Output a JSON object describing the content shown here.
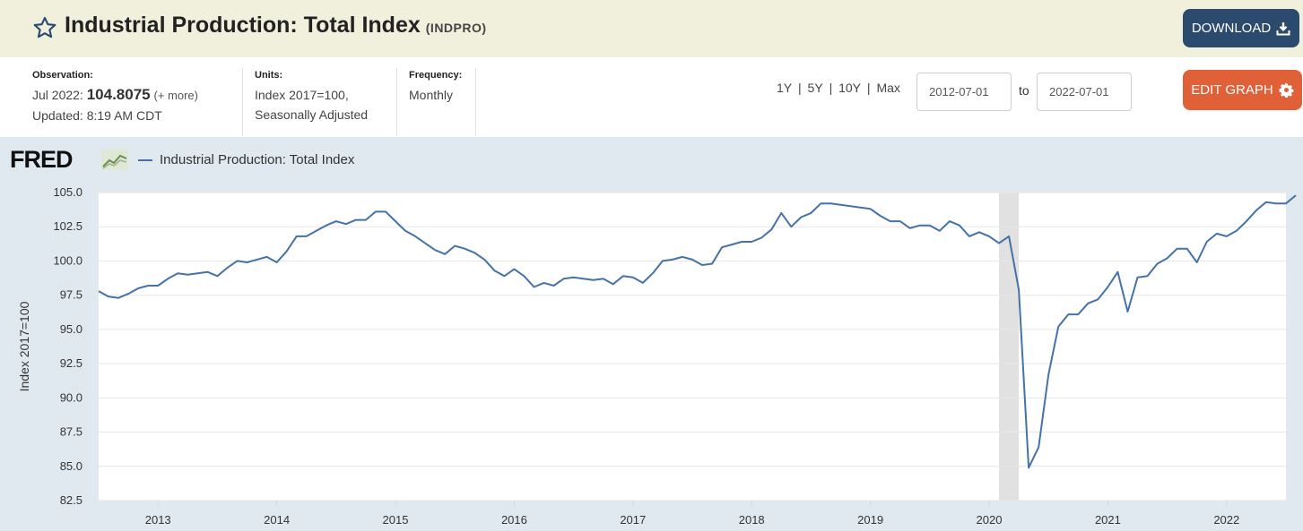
{
  "header": {
    "title": "Industrial Production: Total Index",
    "series_id": "(INDPRO)",
    "download_label": "DOWNLOAD"
  },
  "meta": {
    "observation_label": "Observation:",
    "observation_period": "Jul 2022:",
    "observation_value": "104.8075",
    "observation_more": "(+ more)",
    "updated": "Updated: 8:19 AM CDT",
    "units_label": "Units:",
    "units_line1": "Index 2017=100,",
    "units_line2": "Seasonally Adjusted",
    "frequency_label": "Frequency:",
    "frequency_value": "Monthly"
  },
  "controls": {
    "ranges": [
      "1Y",
      "5Y",
      "10Y",
      "Max"
    ],
    "range_separator": "|",
    "start_date": "2012-07-01",
    "to_label": "to",
    "end_date": "2022-07-01",
    "edit_label": "EDIT GRAPH"
  },
  "brand": {
    "logo_text": "FRED"
  },
  "colors": {
    "series": "#4572a7",
    "recession": "#e1e1e1",
    "header_bg": "#f0f0dc",
    "download": "#2c4a6e",
    "edit": "#e06037"
  },
  "chart_data": {
    "type": "line",
    "title": "",
    "xlabel": "",
    "ylabel": "Index 2017=100",
    "ylim": [
      82.5,
      105.0
    ],
    "xlim": [
      "2012-07-01",
      "2022-07-01"
    ],
    "y_ticks": [
      "105.0",
      "102.5",
      "100.0",
      "97.5",
      "95.0",
      "92.5",
      "90.0",
      "87.5",
      "85.0",
      "82.5"
    ],
    "x_ticks": [
      "2013",
      "2014",
      "2015",
      "2016",
      "2017",
      "2018",
      "2019",
      "2020",
      "2021",
      "2022"
    ],
    "grid": true,
    "legend_position": "top-left",
    "recession_shading": [
      [
        "2020-02-01",
        "2020-04-01"
      ]
    ],
    "series": [
      {
        "name": "Industrial Production: Total Index",
        "start": "2012-07",
        "frequency": "monthly",
        "values": [
          97.8,
          97.4,
          97.3,
          97.6,
          98.0,
          98.2,
          98.2,
          98.7,
          99.1,
          99.0,
          99.1,
          99.2,
          98.9,
          99.5,
          100.0,
          99.9,
          100.1,
          100.3,
          99.9,
          100.7,
          101.8,
          101.8,
          102.2,
          102.6,
          102.9,
          102.7,
          103.0,
          103.0,
          103.6,
          103.6,
          102.9,
          102.2,
          101.8,
          101.3,
          100.8,
          100.5,
          101.1,
          100.9,
          100.6,
          100.1,
          99.3,
          98.9,
          99.4,
          98.9,
          98.1,
          98.4,
          98.2,
          98.7,
          98.8,
          98.7,
          98.6,
          98.7,
          98.3,
          98.9,
          98.8,
          98.4,
          99.1,
          100.0,
          100.1,
          100.3,
          100.1,
          99.7,
          99.8,
          101.0,
          101.2,
          101.4,
          101.4,
          101.7,
          102.3,
          103.5,
          102.5,
          103.2,
          103.5,
          104.2,
          104.2,
          104.1,
          104.0,
          103.9,
          103.8,
          103.3,
          102.9,
          102.9,
          102.4,
          102.6,
          102.6,
          102.2,
          102.9,
          102.6,
          101.8,
          102.1,
          101.8,
          101.3,
          101.8,
          97.9,
          84.9,
          86.4,
          91.7,
          95.2,
          96.1,
          96.1,
          96.9,
          97.2,
          98.1,
          99.2,
          96.3,
          98.8,
          98.9,
          99.8,
          100.2,
          100.9,
          100.9,
          99.9,
          101.4,
          102.0,
          101.8,
          102.2,
          102.9,
          103.7,
          104.3,
          104.2,
          104.2,
          104.8
        ]
      }
    ]
  }
}
